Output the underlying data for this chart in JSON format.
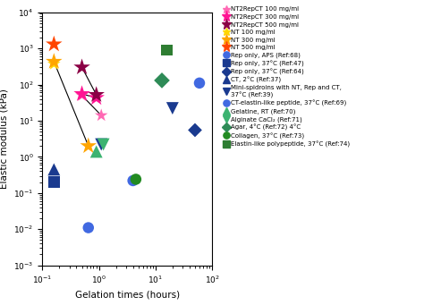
{
  "series": [
    {
      "label": "NT2RepCT 100 mg/ml",
      "color": "#ff69b4",
      "marker": "*",
      "markersize": 11,
      "points": [
        [
          0.5,
          50
        ],
        [
          1.1,
          14
        ]
      ],
      "connected": true
    },
    {
      "label": "NT2RepCT 300 mg/ml",
      "color": "#ff1493",
      "marker": "*",
      "markersize": 14,
      "points": [
        [
          0.5,
          55
        ],
        [
          0.9,
          43
        ]
      ],
      "connected": true
    },
    {
      "label": "NT2RepCT 500 mg/ml",
      "color": "#8b0045",
      "marker": "*",
      "markersize": 14,
      "points": [
        [
          0.5,
          300
        ],
        [
          0.9,
          52
        ]
      ],
      "connected": true
    },
    {
      "label": "NT 100 mg/ml",
      "color": "#ffd700",
      "marker": "*",
      "markersize": 11,
      "points": [
        [
          0.16,
          370
        ]
      ],
      "connected": false
    },
    {
      "label": "NT 300 mg/ml",
      "color": "#ffa500",
      "marker": "*",
      "markersize": 14,
      "points": [
        [
          0.16,
          430
        ],
        [
          0.65,
          2.0
        ]
      ],
      "connected": true
    },
    {
      "label": "NT 500 mg/ml",
      "color": "#ff4500",
      "marker": "*",
      "markersize": 14,
      "points": [
        [
          0.16,
          1300
        ]
      ],
      "connected": false
    },
    {
      "label": "Rep only, APS (Ref:68)",
      "color": "#4169e1",
      "marker": "o",
      "markersize": 9,
      "points": [
        [
          0.65,
          0.011
        ],
        [
          60,
          110
        ]
      ],
      "connected": false
    },
    {
      "label": "Rep only, 37°C (Ref:47)",
      "color": "#1a3a8f",
      "marker": "s",
      "markersize": 9,
      "points": [
        [
          0.16,
          0.2
        ]
      ],
      "connected": false
    },
    {
      "label": "Rep only, 37°C (Ref:64)",
      "color": "#1a3a8f",
      "marker": "D",
      "markersize": 8,
      "points": [
        [
          50,
          5.5
        ]
      ],
      "connected": false
    },
    {
      "label": "CT, 2°C (Ref:37)",
      "color": "#1a3a8f",
      "marker": "^",
      "markersize": 10,
      "points": [
        [
          0.16,
          0.45
        ]
      ],
      "connected": false
    },
    {
      "label": "Mini-spidroins with NT, Rep and CT,\n37°C (Ref:39)",
      "color": "#1a3a8f",
      "marker": "v",
      "markersize": 10,
      "points": [
        [
          1.1,
          2.2
        ],
        [
          20,
          22
        ]
      ],
      "connected": false
    },
    {
      "label": "CT-elastin-like peptide, 37°C (Ref:69)",
      "color": "#4169e1",
      "marker": "o",
      "markersize": 9,
      "points": [
        [
          4.0,
          0.22
        ]
      ],
      "connected": false
    },
    {
      "label": "Gelatine, RT (Ref:70)",
      "color": "#3cb371",
      "marker": "^",
      "markersize": 10,
      "points": [
        [
          0.9,
          1.4
        ]
      ],
      "connected": false
    },
    {
      "label": "Alginate CaCl₂ (Ref:71)",
      "color": "#3cb371",
      "marker": "v",
      "markersize": 10,
      "points": [
        [
          1.2,
          2.2
        ]
      ],
      "connected": false
    },
    {
      "label": "Agar, 4°C (Ref:72) 4°C",
      "color": "#2e8b57",
      "marker": "D",
      "markersize": 9,
      "points": [
        [
          13,
          130
        ]
      ],
      "connected": false
    },
    {
      "label": "Collagen, 37°C (Ref:73)",
      "color": "#228b22",
      "marker": "o",
      "markersize": 9,
      "points": [
        [
          4.5,
          0.24
        ]
      ],
      "connected": false
    },
    {
      "label": "Elastin-like polypeptide, 37°C (Ref:74)",
      "color": "#2e7d32",
      "marker": "s",
      "markersize": 9,
      "points": [
        [
          16,
          900
        ]
      ],
      "connected": false
    }
  ],
  "xlim": [
    0.1,
    100
  ],
  "ylim": [
    0.001,
    10000.0
  ],
  "xlabel": "Gelation times (hours)",
  "ylabel": "Elastic modulus (kPa)",
  "legend_fontsize": 5.0,
  "axis_fontsize": 7.5,
  "tick_fontsize": 6.5
}
